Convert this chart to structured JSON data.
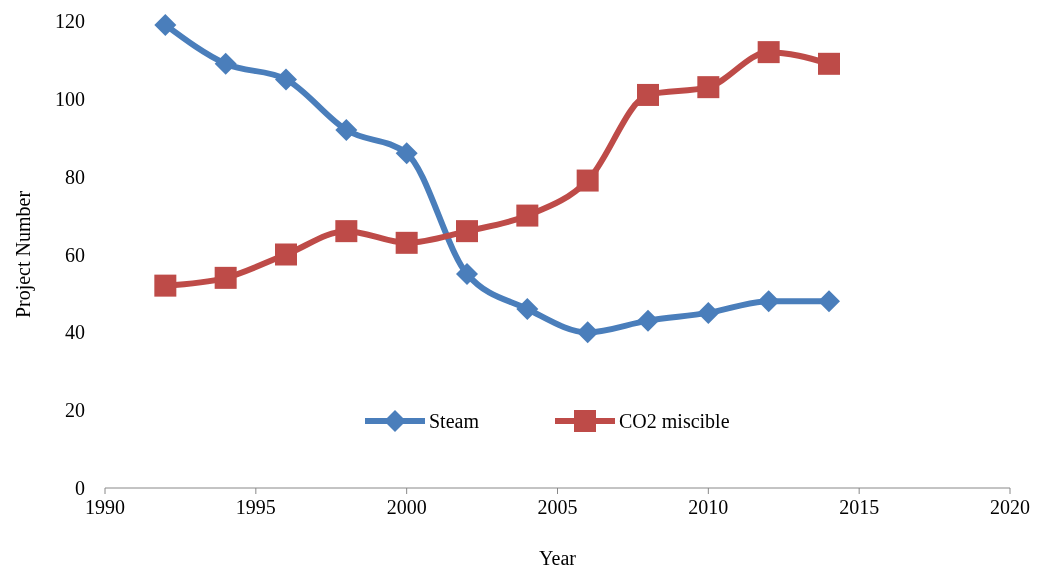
{
  "chart_data": {
    "type": "line",
    "xlabel": "Year",
    "ylabel": "Project Number",
    "x": [
      1992,
      1994,
      1996,
      1998,
      2000,
      2002,
      2004,
      2006,
      2008,
      2010,
      2012,
      2014
    ],
    "series": [
      {
        "name": "Steam",
        "color": "#4a7ebb",
        "marker": "diamond",
        "values": [
          119,
          109,
          105,
          92,
          86,
          55,
          46,
          40,
          43,
          45,
          48,
          48
        ]
      },
      {
        "name": "CO2 miscible",
        "color": "#be4b48",
        "marker": "square",
        "values": [
          52,
          54,
          60,
          66,
          63,
          66,
          70,
          79,
          101,
          103,
          112,
          109
        ]
      }
    ],
    "xlim": [
      1990,
      2020
    ],
    "xticks": [
      1990,
      1995,
      2000,
      2005,
      2010,
      2015,
      2020
    ],
    "ylim": [
      0,
      120
    ],
    "yticks": [
      0,
      20,
      40,
      60,
      80,
      100,
      120
    ],
    "grid": false,
    "legend": "bottom",
    "line_style": "solid"
  }
}
